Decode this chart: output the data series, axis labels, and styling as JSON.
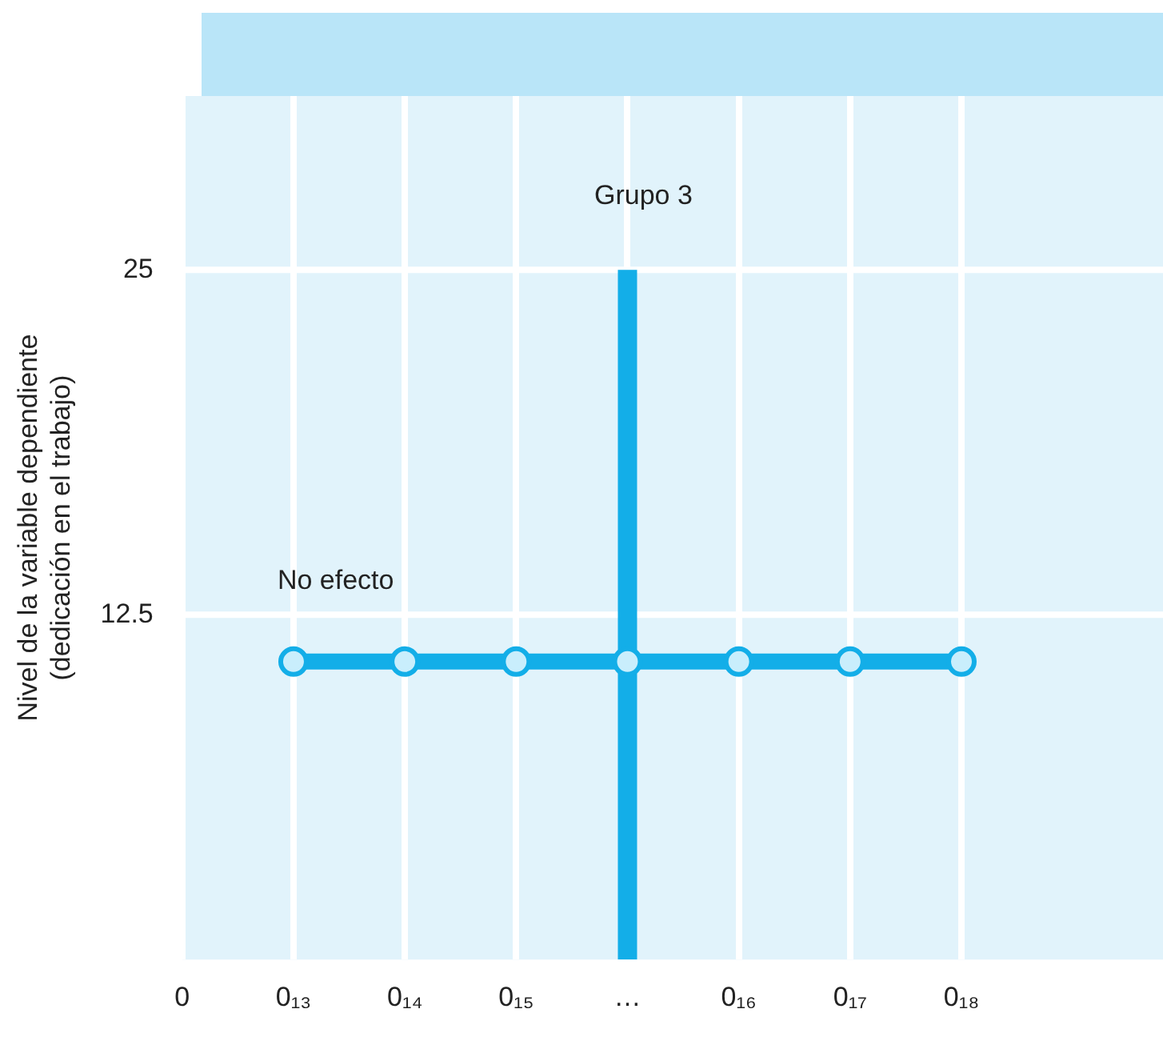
{
  "chart_data": {
    "type": "line",
    "ylabel": "Nivel de la variable dependiente\n(dedicación en el trabajo)",
    "categories": [
      "0",
      "0₁₃",
      "0₁₄",
      "0₁₅",
      "…",
      "0₁₆",
      "0₁₇",
      "0₁₈"
    ],
    "series": [
      {
        "color": "#13aee8",
        "values": [
          null,
          10.8,
          10.8,
          10.8,
          10.8,
          10.8,
          10.8,
          10.8
        ],
        "marker": "circle"
      },
      {
        "color": "#13aee8",
        "x": [
          "…",
          "…"
        ],
        "values": [
          0,
          25
        ],
        "marker": "none"
      }
    ],
    "ylim": [
      0,
      31.3
    ],
    "yticks": [
      12.5,
      25
    ],
    "grid": true,
    "legend": false,
    "annotations": [
      "Grupo 3",
      "No efecto"
    ]
  }
}
